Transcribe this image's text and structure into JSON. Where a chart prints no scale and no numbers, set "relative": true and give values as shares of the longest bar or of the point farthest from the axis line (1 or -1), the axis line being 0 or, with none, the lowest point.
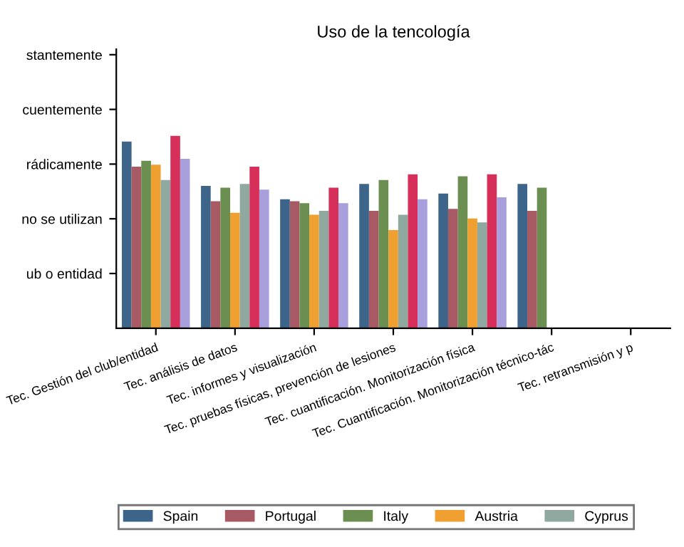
{
  "chart_data": {
    "type": "bar",
    "title": "Uso de la tencología",
    "relative": true,
    "categories": [
      "Tec. Gestión del club/entidad",
      "Tec. análisis de datos",
      "Tec. informes y visualización",
      "Tec. pruebas físicas, prevención de lesiones",
      "Tec. cuantificación. Monitorización física",
      "Tec. Cuantificación. Monitorización técnico-tác",
      "Tec. retransmisión y p"
    ],
    "series": [
      {
        "name": "Spain",
        "color": "#3d6489",
        "values": [
          0.97,
          0.74,
          0.67,
          0.75,
          0.7,
          0.75,
          null
        ]
      },
      {
        "name": "Portugal",
        "color": "#a85a64",
        "values": [
          0.84,
          0.66,
          0.66,
          0.61,
          0.62,
          0.61,
          null
        ]
      },
      {
        "name": "Italy",
        "color": "#6b8f50",
        "values": [
          0.87,
          0.73,
          0.65,
          0.77,
          0.79,
          0.73,
          null
        ]
      },
      {
        "name": "Austria",
        "color": "#f0a030",
        "values": [
          0.85,
          0.6,
          0.59,
          0.51,
          0.57,
          null,
          null
        ]
      },
      {
        "name": "Cyprus",
        "color": "#8fa8a0",
        "values": [
          0.77,
          0.75,
          0.61,
          0.59,
          0.55,
          null,
          null
        ]
      },
      {
        "color": "#d6305a",
        "values": [
          1,
          0.84,
          0.73,
          0.8,
          0.8,
          null,
          null
        ]
      },
      {
        "color": "#a8a0dc",
        "values": [
          0.88,
          0.72,
          0.65,
          0.67,
          0.68,
          null,
          null
        ]
      }
    ],
    "annotations": [
      "ub o entidad",
      "no se utilizan",
      "rádicamente",
      "cuentemente",
      "stantemente"
    ],
    "grid": false,
    "legend": "bottom"
  }
}
